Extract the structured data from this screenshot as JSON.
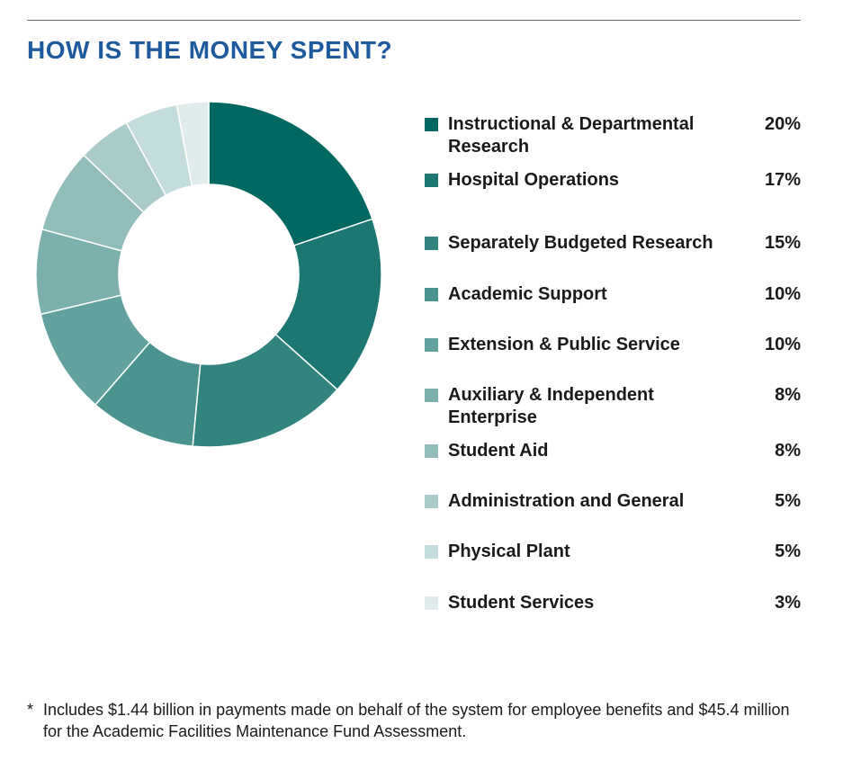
{
  "title": "HOW IS THE MONEY SPENT?",
  "chart_data": {
    "type": "pie",
    "title": "HOW IS THE MONEY SPENT?",
    "style": "donut",
    "legend_position": "right",
    "categories": [
      "Instructional & Departmental Research",
      "Hospital Operations",
      "Separately Budgeted Research",
      "Academic Support",
      "Extension & Public Service",
      "Auxiliary & Independent Enterprise",
      "Student Aid",
      "Administration and General",
      "Physical Plant",
      "Student Services"
    ],
    "values": [
      20,
      17,
      15,
      10,
      10,
      8,
      8,
      5,
      5,
      3
    ],
    "value_labels": [
      "20%",
      "17%",
      "15%",
      "10%",
      "10%",
      "8%",
      "8%",
      "5%",
      "5%",
      "3%"
    ],
    "colors": [
      "#006761",
      "#1c7772",
      "#32847f",
      "#4a938e",
      "#62a19d",
      "#7db0ad",
      "#91bcba",
      "#a9cbca",
      "#c4dcdb",
      "#dfeceb"
    ]
  },
  "footnote": {
    "marker": "*",
    "text": "Includes $1.44 billion in payments made on behalf of the system for employee benefits and $45.4 million for the Academic Facilities Maintenance Fund Assessment."
  }
}
